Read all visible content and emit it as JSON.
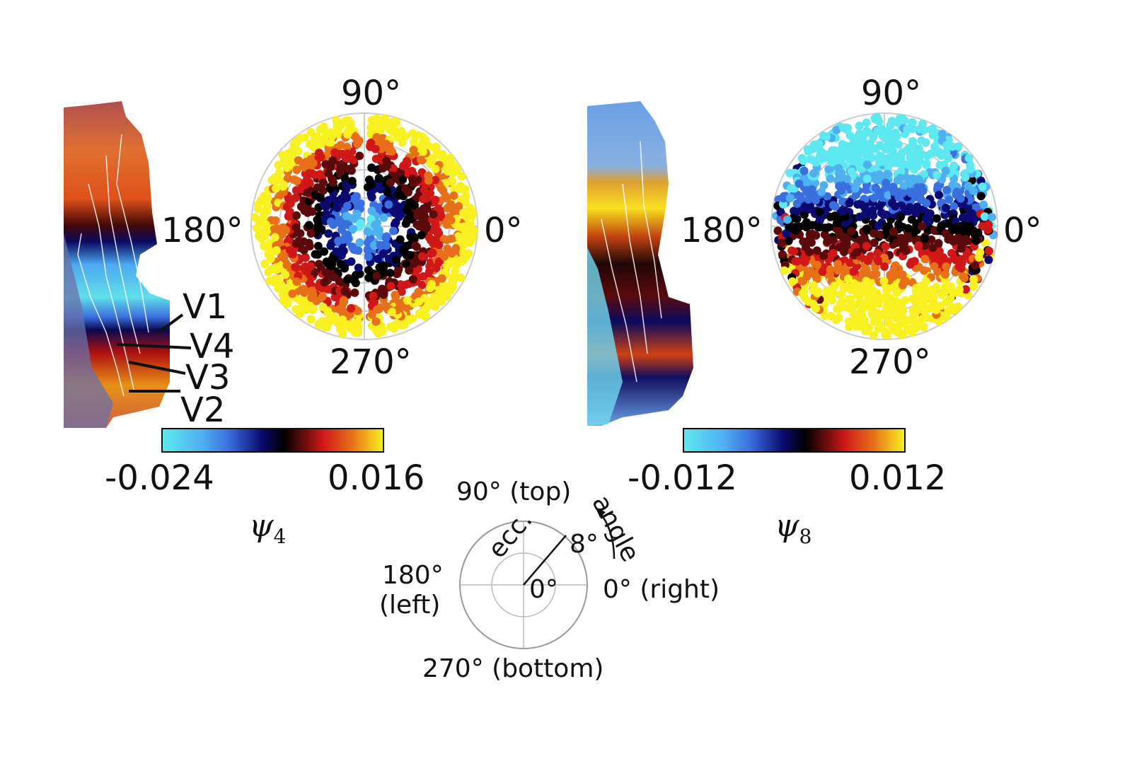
{
  "panels": [
    {
      "polar_labels": {
        "top": "90°",
        "left": "180°",
        "right": "0°",
        "bottom": "270°"
      },
      "colorbar": {
        "min": "-0.024",
        "max": "0.016"
      },
      "eigenvector_label": "ψ",
      "eigenvector_index": "4",
      "area_labels": [
        "V1",
        "V4",
        "V3",
        "V2"
      ]
    },
    {
      "polar_labels": {
        "top": "90°",
        "left": "180°",
        "right": "0°",
        "bottom": "270°"
      },
      "colorbar": {
        "min": "-0.012",
        "max": "0.012"
      },
      "eigenvector_label": "ψ",
      "eigenvector_index": "8"
    }
  ],
  "legend": {
    "top": "90° (top)",
    "left_deg": "180°",
    "left_word": "(left)",
    "right": "0° (right)",
    "bottom": "270° (bottom)",
    "ecc": "ecc.",
    "ecc_max": "8°",
    "ecc_min": "0°",
    "angle": "angle"
  },
  "colors": {
    "cyan": "#5ee8f0",
    "blue": "#3a6fe0",
    "navy": "#0a0a70",
    "black": "#000000",
    "red": "#d01818",
    "orange": "#e87018",
    "yellow": "#f8f020"
  }
}
